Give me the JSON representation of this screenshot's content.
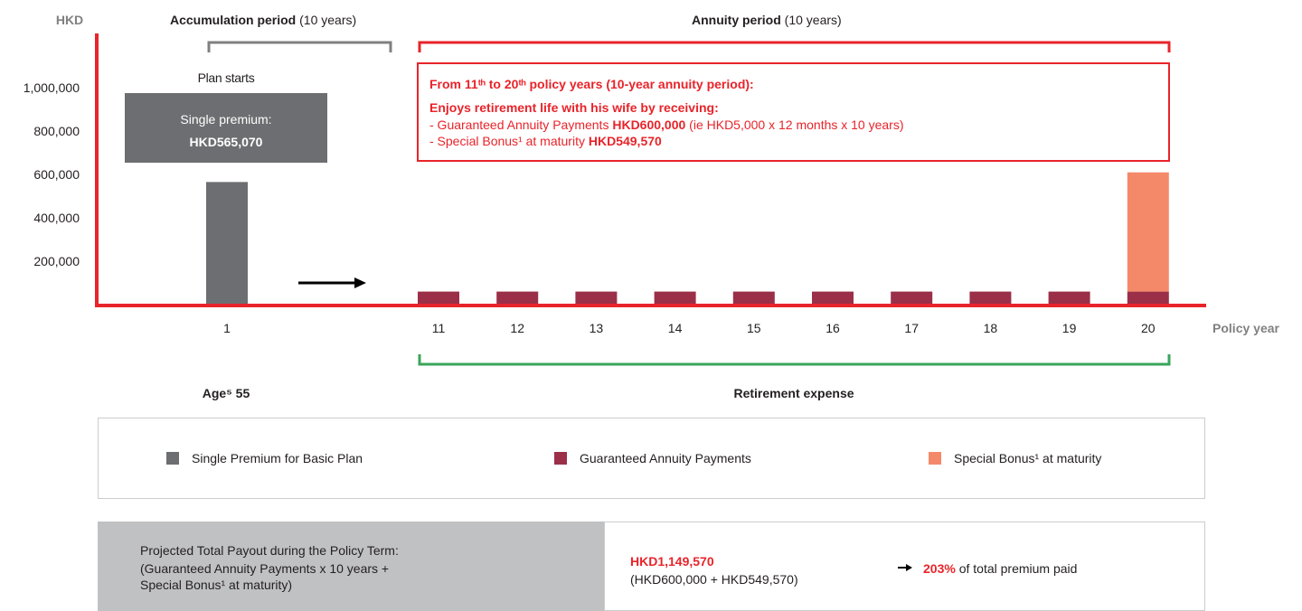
{
  "chart_data": {
    "type": "bar",
    "stacked": true,
    "y_label": "HKD",
    "x_label": "Policy year",
    "categories": [
      "1",
      "11",
      "12",
      "13",
      "14",
      "15",
      "16",
      "17",
      "18",
      "19",
      "20"
    ],
    "series": [
      {
        "name": "Single Premium for Basic Plan",
        "color": "#6d6e71",
        "values": [
          565070,
          null,
          null,
          null,
          null,
          null,
          null,
          null,
          null,
          null,
          null
        ]
      },
      {
        "name": "Guaranteed Annuity Payments",
        "color": "#9b2f48",
        "values": [
          null,
          60000,
          60000,
          60000,
          60000,
          60000,
          60000,
          60000,
          60000,
          60000,
          60000
        ]
      },
      {
        "name": "Special Bonus¹ at maturity",
        "color": "#f4896a",
        "values": [
          null,
          null,
          null,
          null,
          null,
          null,
          null,
          null,
          null,
          null,
          549570
        ]
      }
    ],
    "ylim": [
      0,
      1250000
    ],
    "yticks": [
      {
        "value": 200000,
        "label": "200,000"
      },
      {
        "value": 400000,
        "label": "400,000"
      },
      {
        "value": 600000,
        "label": "600,000"
      },
      {
        "value": 800000,
        "label": "800,000"
      },
      {
        "value": 1000000,
        "label": "1,000,000"
      }
    ],
    "grid": false
  },
  "periods": {
    "accumulation": {
      "label": "Accumulation period",
      "note": " (10 years)"
    },
    "annuity": {
      "label": "Annuity period",
      "note": " (10 years)"
    }
  },
  "plan_start": {
    "caption": "Plan starts",
    "line1": "Single premium:",
    "line2": "HKD565,070"
  },
  "annotation": {
    "heading": "From 11ᵗʰ to 20ᵗʰ policy years (10-year annuity period):",
    "intro": "Enjoys retirement life with his wife by receiving:",
    "bullet1": {
      "text": "-  Guaranteed Annuity Payments ",
      "amount": "HKD600,000",
      "detail": " (ie HKD5,000 x 12 months x 10 years)"
    },
    "bullet2": {
      "text": "-  Special Bonus¹ at maturity ",
      "amount": "HKD549,570"
    }
  },
  "age_label": "Age⁵ 55",
  "expense_label": "Retirement expense",
  "summary": {
    "title": "Projected Total Payout during the Policy Term:",
    "formula1": "(Guaranteed Annuity Payments x 10 years +",
    "formula2": " Special Bonus¹ at maturity)",
    "total": "HKD1,149,570",
    "breakdown": "(HKD600,000 + HKD549,570)",
    "ratio": "203%",
    "ratio_text": " of total premium paid"
  }
}
